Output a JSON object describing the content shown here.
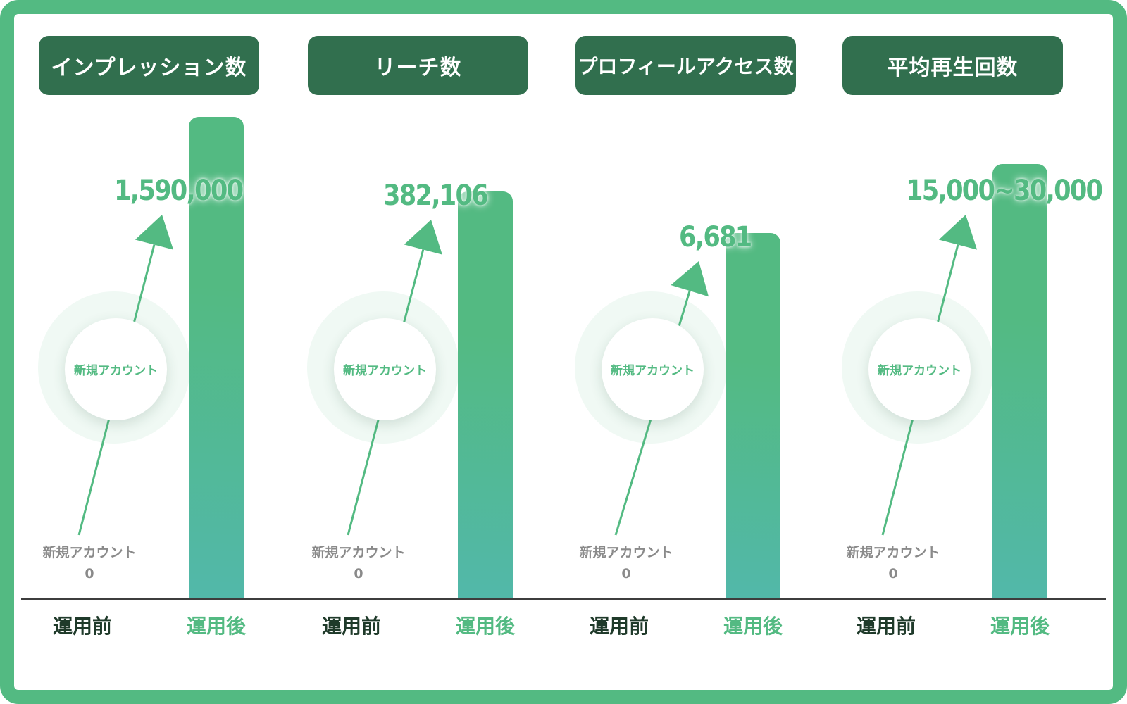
{
  "chart_data": {
    "type": "bar",
    "categories": [
      "運用前",
      "運用後"
    ],
    "panels": [
      {
        "title": "インプレッション数",
        "before_label": "新規アカウント",
        "before_value": 0,
        "before_value_text": "0",
        "after_value": 1590000,
        "after_value_text": "1,590,000",
        "bar_level": 1.0,
        "circle_label": "新規アカウント"
      },
      {
        "title": "リーチ数",
        "before_label": "新規アカウント",
        "before_value": 0,
        "before_value_text": "0",
        "after_value": 382106,
        "after_value_text": "382,106",
        "bar_level": 0.846,
        "circle_label": "新規アカウント"
      },
      {
        "title": "プロフィールアクセス数",
        "before_label": "新規アカウント",
        "before_value": 0,
        "before_value_text": "0",
        "after_value": 6681,
        "after_value_text": "6,681",
        "bar_level": 0.76,
        "circle_label": "新規アカウント"
      },
      {
        "title": "平均再生回数",
        "before_label": "新規アカウント",
        "before_value": 0,
        "before_value_text": "0",
        "after_value": 30000,
        "after_value_text": "15,000~30,000",
        "bar_level": 0.903,
        "circle_label": "新規アカウント"
      }
    ],
    "xlabels": {
      "before": "運用前",
      "after": "運用後"
    },
    "colors": {
      "accent": "#53ba82",
      "header": "#316f4e",
      "text_dark": "#1f3a2a",
      "muted": "#8a8a8a"
    }
  }
}
